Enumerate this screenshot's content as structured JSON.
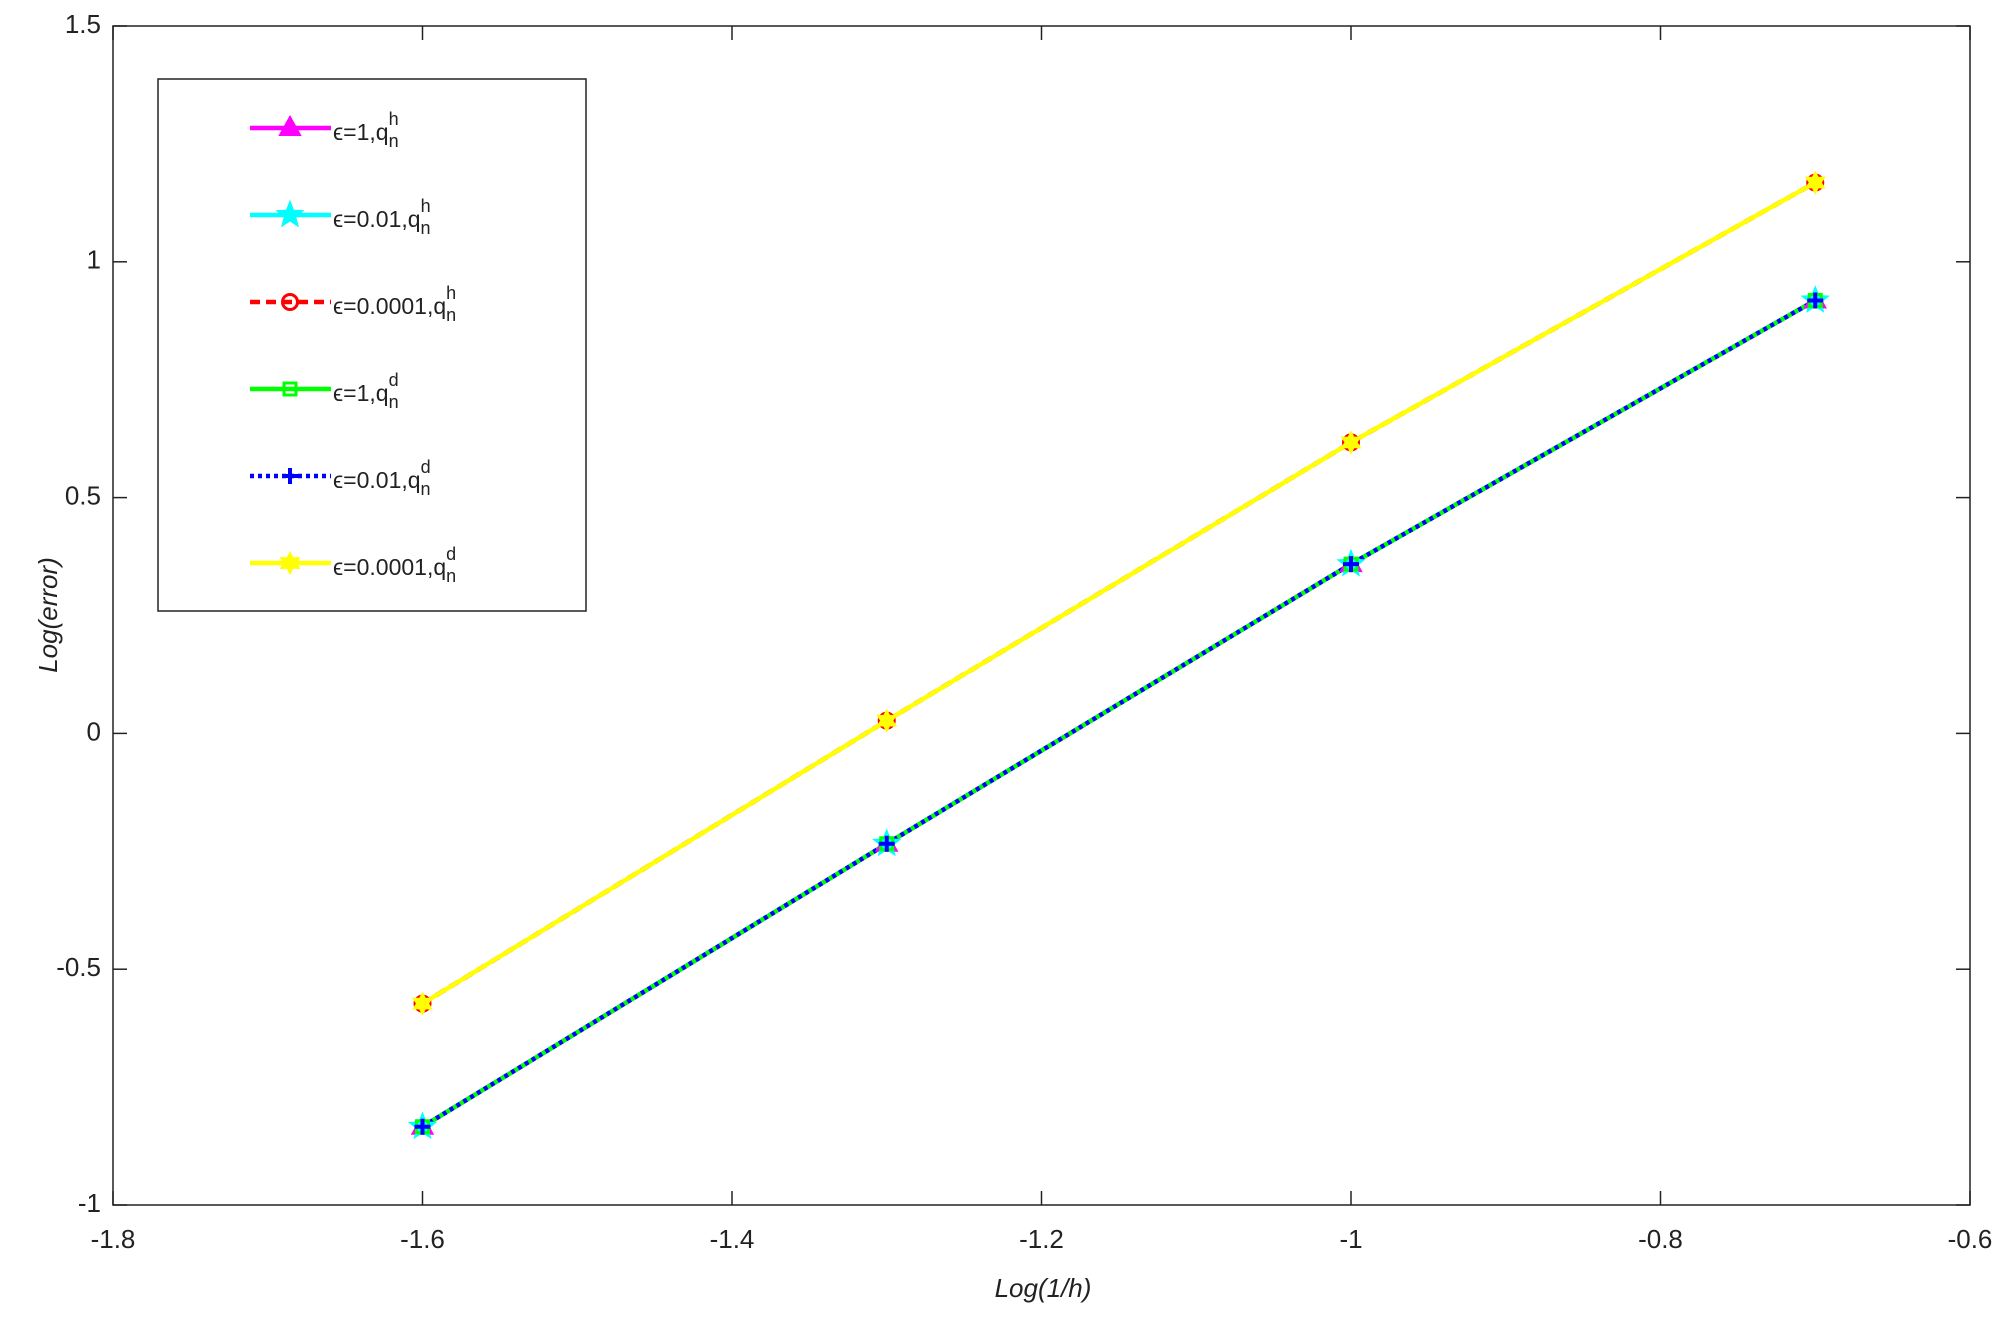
{
  "chart_data": {
    "type": "line",
    "xlabel": "Log(1/h)",
    "ylabel": "Log(error)",
    "x": [
      -1.6,
      -1.3,
      -1,
      -0.7
    ],
    "series": [
      {
        "name": "ϵ=1,q",
        "subscript": "n",
        "superscript": "h",
        "color": "#ff00ff",
        "marker": "triangle",
        "dash": "solid",
        "values": [
          -0.834,
          -0.234,
          0.359,
          0.918
        ]
      },
      {
        "name": "ϵ=0.01,q",
        "subscript": "n",
        "superscript": "h",
        "color": "#00ffff",
        "marker": "star",
        "dash": "solid",
        "values": [
          -0.834,
          -0.234,
          0.359,
          0.918
        ]
      },
      {
        "name": "ϵ=0.0001,q",
        "subscript": "n",
        "superscript": "h",
        "color": "#ff0000",
        "marker": "circle",
        "dash": "dashed",
        "values": [
          -0.573,
          0.027,
          0.617,
          1.168
        ]
      },
      {
        "name": "ϵ=1,q",
        "subscript": "n",
        "superscript": "d",
        "color": "#00ff00",
        "marker": "square",
        "dash": "solid",
        "values": [
          -0.834,
          -0.234,
          0.359,
          0.918
        ]
      },
      {
        "name": "ϵ=0.01,q",
        "subscript": "n",
        "superscript": "d",
        "color": "#0000ff",
        "marker": "plus",
        "dash": "dotted",
        "values": [
          -0.834,
          -0.234,
          0.359,
          0.918
        ]
      },
      {
        "name": "ϵ=0.0001,q",
        "subscript": "n",
        "superscript": "d",
        "color": "#ffff00",
        "marker": "hexagram",
        "dash": "solid",
        "values": [
          -0.573,
          0.027,
          0.617,
          1.168
        ]
      }
    ],
    "xlim": [
      -1.8,
      -0.6
    ],
    "xticks": [
      -1.8,
      -1.6,
      -1.4,
      -1.2,
      -1,
      -0.8,
      -0.6
    ],
    "ylim": [
      -1,
      1.5
    ],
    "yticks": [
      -1,
      -0.5,
      0,
      0.5,
      1,
      1.5
    ],
    "grid": false,
    "legend": "upper left"
  }
}
